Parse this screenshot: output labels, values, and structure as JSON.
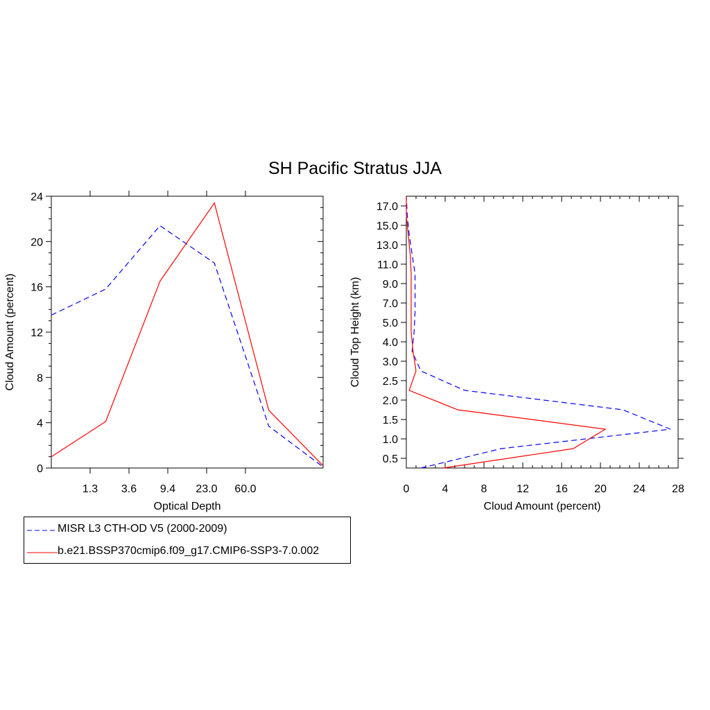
{
  "title": "SH Pacific Stratus JJA",
  "colors": {
    "obs": "#0000ff",
    "model": "#ff0000",
    "axis": "#000000"
  },
  "legend": {
    "obs_label": "MISR L3 CTH-OD V5 (2000-2009)",
    "model_label": "b.e21.BSSP370cmip6.f09_g17.CMIP6-SSP3-7.0.002"
  },
  "chart_data": [
    {
      "type": "line",
      "xlabel": "Optical Depth",
      "ylabel": "Cloud Amount (percent)",
      "x_tick_labels": [
        "1.3",
        "3.6",
        "9.4",
        "23.0",
        "60.0"
      ],
      "y_ticks": [
        0,
        4,
        8,
        12,
        16,
        20,
        24
      ],
      "ylim": [
        0,
        24
      ],
      "x_bins": 7,
      "series": [
        {
          "name": "MISR L3 CTH-OD V5 (2000-2009)",
          "style": "dashed",
          "color": "#0000ff",
          "values": [
            13.5,
            15.8,
            21.4,
            18.1,
            3.7,
            0.1
          ]
        },
        {
          "name": "b.e21.BSSP370cmip6.f09_g17.CMIP6-SSP3-7.0.002",
          "style": "solid",
          "color": "#ff0000",
          "values": [
            1.0,
            4.1,
            16.5,
            23.4,
            5.1,
            0.2
          ]
        }
      ]
    },
    {
      "type": "line",
      "xlabel": "Cloud Amount (percent)",
      "ylabel": "Cloud Top Height (km)",
      "x_ticks": [
        0,
        4,
        8,
        12,
        16,
        20,
        24,
        28
      ],
      "xlim": [
        0,
        28
      ],
      "y_tick_labels": [
        "0.5",
        "1.0",
        "1.5",
        "2.0",
        "2.5",
        "3.0",
        "4.0",
        "5.0",
        "7.0",
        "9.0",
        "11.0",
        "13.0",
        "15.0",
        "17.0"
      ],
      "series": [
        {
          "name": "MISR L3 CTH-OD V5 (2000-2009)",
          "style": "dashed",
          "color": "#0000ff",
          "values": [
            1.5,
            9.8,
            27.2,
            22.3,
            6.0,
            1.5,
            0.6,
            0.8,
            0.9,
            0.9,
            0.9,
            0.6,
            0.3,
            0.1,
            0.0
          ]
        },
        {
          "name": "b.e21.BSSP370cmip6.f09_g17.CMIP6-SSP3-7.0.002",
          "style": "solid",
          "color": "#ff0000",
          "values": [
            3.8,
            17.2,
            20.5,
            5.3,
            0.3,
            1.0,
            0.7,
            0.5,
            0.5,
            0.5,
            0.5,
            0.4,
            0.2,
            0.0,
            0.0
          ]
        }
      ]
    }
  ]
}
